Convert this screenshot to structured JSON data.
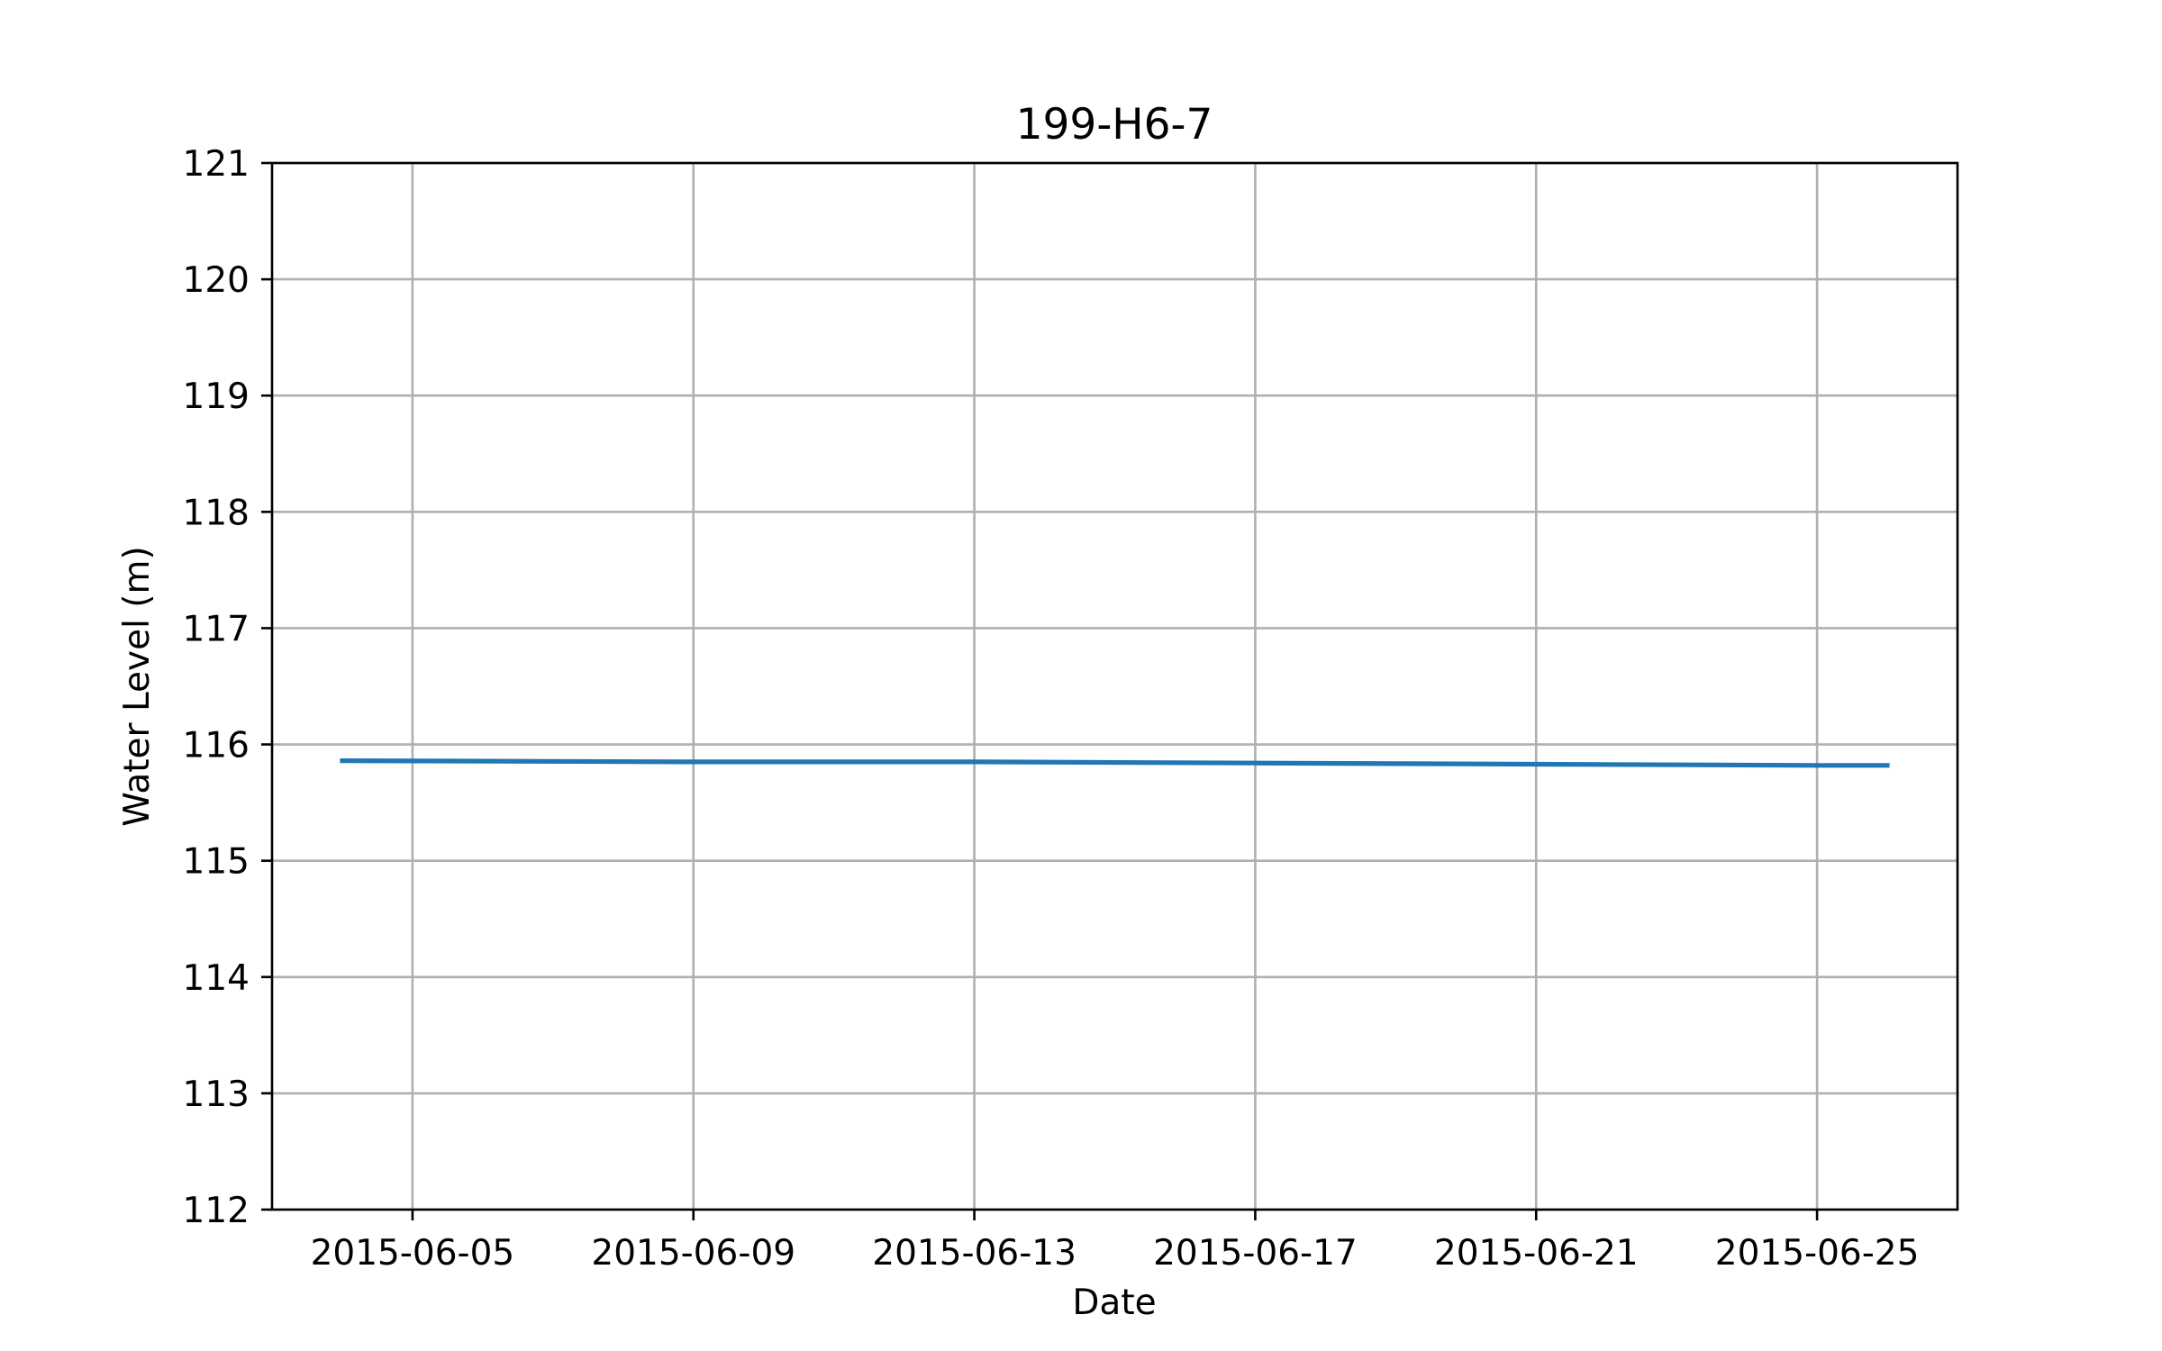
{
  "chart_data": {
    "type": "line",
    "title": "199-H6-7",
    "xlabel": "Date",
    "ylabel": "Water Level (m)",
    "xlim": [
      "2015-06-03",
      "2015-06-27"
    ],
    "ylim": [
      112,
      121
    ],
    "x_ticks": [
      "2015-06-05",
      "2015-06-09",
      "2015-06-13",
      "2015-06-17",
      "2015-06-21",
      "2015-06-25"
    ],
    "y_ticks": [
      112,
      113,
      114,
      115,
      116,
      117,
      118,
      119,
      120,
      121
    ],
    "grid": true,
    "legend": "none",
    "series": [
      {
        "color": "#1f77b4",
        "x": [
          "2015-06-04",
          "2015-06-09",
          "2015-06-13",
          "2015-06-17",
          "2015-06-21",
          "2015-06-25",
          "2015-06-26"
        ],
        "values": [
          115.86,
          115.85,
          115.85,
          115.84,
          115.83,
          115.82,
          115.82
        ]
      }
    ]
  }
}
